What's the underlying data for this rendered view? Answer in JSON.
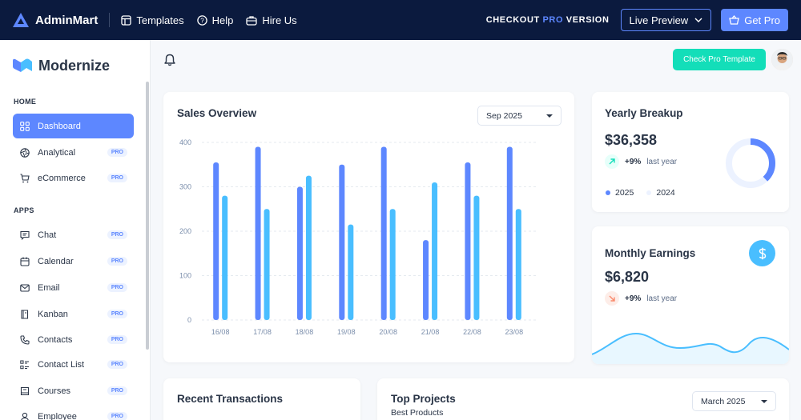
{
  "promo": {
    "brand": "AdminMart",
    "nav": [
      {
        "label": "Templates",
        "icon": "layout-icon"
      },
      {
        "label": "Help",
        "icon": "help-circle-icon"
      },
      {
        "label": "Hire Us",
        "icon": "briefcase-icon"
      }
    ],
    "checkout_prefix": "CHECKOUT ",
    "checkout_pro": "PRO",
    "checkout_suffix": " VERSION",
    "live_preview": "Live Preview",
    "get_pro": "Get Pro"
  },
  "sidebar": {
    "brand": "Modernize",
    "sections": [
      {
        "label": "HOME"
      },
      {
        "label": "APPS"
      }
    ],
    "items": [
      {
        "label": "Dashboard",
        "badge": "",
        "icon": "dashboard-icon",
        "active": true
      },
      {
        "label": "Analytical",
        "badge": "PRO",
        "icon": "aperture-icon"
      },
      {
        "label": "eCommerce",
        "badge": "PRO",
        "icon": "shopping-cart-icon"
      },
      {
        "label": "Chat",
        "badge": "PRO",
        "icon": "message-icon"
      },
      {
        "label": "Calendar",
        "badge": "PRO",
        "icon": "calendar-icon"
      },
      {
        "label": "Email",
        "badge": "PRO",
        "icon": "mail-icon"
      },
      {
        "label": "Kanban",
        "badge": "PRO",
        "icon": "notebook-icon"
      },
      {
        "label": "Contacts",
        "badge": "PRO",
        "icon": "phone-icon"
      },
      {
        "label": "Contact List",
        "badge": "PRO",
        "icon": "list-details-icon"
      },
      {
        "label": "Courses",
        "badge": "PRO",
        "icon": "book-icon"
      },
      {
        "label": "Employee",
        "badge": "PRO",
        "icon": "employee-icon"
      }
    ]
  },
  "topbar": {
    "cta": "Check Pro Template",
    "bell_icon": "bell-icon"
  },
  "sales": {
    "title": "Sales Overview",
    "month": "Sep 2025"
  },
  "yearly": {
    "title": "Yearly Breakup",
    "amount": "$36,358",
    "delta": "+9%",
    "delta_text": "last year",
    "legend": [
      "2025",
      "2024"
    ],
    "share_2025": 0.38
  },
  "monthly": {
    "title": "Monthly Earnings",
    "amount": "$6,820",
    "delta": "+9%",
    "delta_text": "last year",
    "icon": "dollar-icon"
  },
  "transactions": {
    "title": "Recent Transactions"
  },
  "projects": {
    "title": "Top Projects",
    "subtitle": "Best Products",
    "month": "March 2025"
  },
  "colors": {
    "primary": "#5d87ff",
    "secondary": "#49beff",
    "success": "#13deb9",
    "danger": "#fa896b",
    "navy": "#0b1a3e"
  },
  "chart_data": {
    "type": "bar",
    "categories": [
      "16/08",
      "17/08",
      "18/08",
      "19/08",
      "20/08",
      "21/08",
      "22/08",
      "23/08"
    ],
    "series": [
      {
        "name": "",
        "values": [
          355,
          390,
          300,
          350,
          390,
          180,
          355,
          390
        ]
      },
      {
        "name": "",
        "values": [
          280,
          250,
          325,
          215,
          250,
          310,
          280,
          250
        ]
      }
    ],
    "ylim": [
      0,
      400
    ],
    "yticks": [
      0,
      100,
      200,
      300,
      400
    ],
    "grid": true,
    "colors": [
      "#5d87ff",
      "#49beff"
    ]
  }
}
